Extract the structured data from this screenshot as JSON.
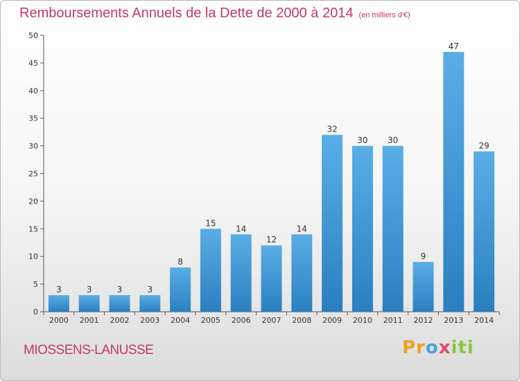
{
  "title": "Remboursements Annuels de la Dette de 2000 à 2014",
  "subtitle": "(en milliers d'€)",
  "commune": "MIOSSENS-LANUSSE",
  "logo": {
    "part1": "Pr",
    "part2": "o",
    "part3": "x",
    "part4": "iti"
  },
  "colors": {
    "bar_top": "#5aaee6",
    "bar_bottom": "#2a7fc0",
    "title": "#c0386a"
  },
  "chart_data": {
    "type": "bar",
    "title": "Remboursements Annuels de la Dette de 2000 à 2014",
    "categories": [
      "2000",
      "2001",
      "2002",
      "2003",
      "2004",
      "2005",
      "2006",
      "2007",
      "2008",
      "2009",
      "2010",
      "2011",
      "2012",
      "2013",
      "2014"
    ],
    "values": [
      3,
      3,
      3,
      3,
      8,
      15,
      14,
      12,
      14,
      32,
      30,
      30,
      9,
      47,
      29
    ],
    "ylim": [
      0,
      50
    ],
    "yticks": [
      0,
      5,
      10,
      15,
      20,
      25,
      30,
      35,
      40,
      45,
      50
    ],
    "grid": false,
    "data_labels": true
  }
}
